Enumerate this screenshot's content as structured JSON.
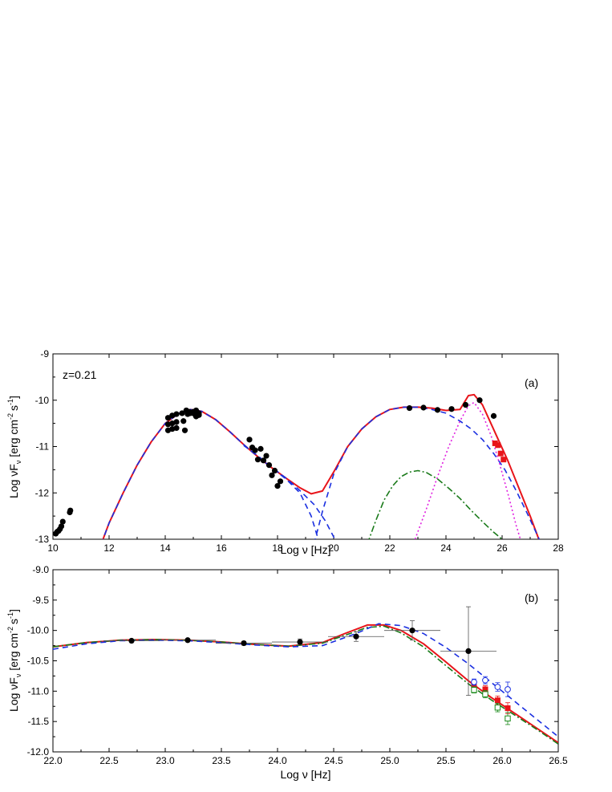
{
  "chart_data": [
    {
      "type": "scatter",
      "panel_label": "(a)",
      "annotation": "z=0.21",
      "xlabel": "Log ν [Hz]",
      "ylabel": "Log νF",
      "ylabel_sub": "ν",
      "ylabel_unit_prefix": "[erg cm",
      "ylabel_unit_exp1": "-2",
      "ylabel_unit_mid": "s",
      "ylabel_unit_exp2": "-1",
      "ylabel_unit_suffix": "]",
      "xlim": [
        10,
        28
      ],
      "ylim": [
        -13,
        -9
      ],
      "xticks": [
        "10",
        "12",
        "14",
        "16",
        "18",
        "20",
        "22",
        "24",
        "26",
        "28"
      ],
      "xtick_values": [
        10,
        12,
        14,
        16,
        18,
        20,
        22,
        24,
        26,
        28
      ],
      "yticks": [
        "-13",
        "-12",
        "-11",
        "-10",
        "-9"
      ],
      "ytick_values": [
        -13,
        -12,
        -11,
        -10,
        -9
      ],
      "series": [
        {
          "style": "black-filled-circle",
          "points": [
            [
              10.1,
              -12.88
            ],
            [
              10.15,
              -12.84
            ],
            [
              10.2,
              -12.82
            ],
            [
              10.25,
              -12.78
            ],
            [
              10.3,
              -12.72
            ],
            [
              10.35,
              -12.62
            ],
            [
              10.6,
              -12.42
            ],
            [
              10.62,
              -12.38
            ],
            [
              14.1,
              -10.38
            ],
            [
              14.1,
              -10.52
            ],
            [
              14.1,
              -10.65
            ],
            [
              14.25,
              -10.33
            ],
            [
              14.25,
              -10.5
            ],
            [
              14.25,
              -10.62
            ],
            [
              14.4,
              -10.3
            ],
            [
              14.4,
              -10.47
            ],
            [
              14.4,
              -10.6
            ],
            [
              14.6,
              -10.28
            ],
            [
              14.65,
              -10.45
            ],
            [
              14.7,
              -10.65
            ],
            [
              14.75,
              -10.22
            ],
            [
              14.8,
              -10.3
            ],
            [
              14.85,
              -10.25
            ],
            [
              14.9,
              -10.28
            ],
            [
              15.0,
              -10.25
            ],
            [
              15.05,
              -10.3
            ],
            [
              15.1,
              -10.22
            ],
            [
              15.1,
              -10.35
            ],
            [
              15.2,
              -10.28
            ],
            [
              15.2,
              -10.32
            ],
            [
              17.0,
              -10.85
            ],
            [
              17.1,
              -11.02
            ],
            [
              17.2,
              -11.08
            ],
            [
              17.3,
              -11.28
            ],
            [
              17.4,
              -11.05
            ],
            [
              17.5,
              -11.3
            ],
            [
              17.6,
              -11.2
            ],
            [
              17.7,
              -11.4
            ],
            [
              17.8,
              -11.62
            ],
            [
              17.9,
              -11.52
            ],
            [
              18.0,
              -11.85
            ],
            [
              18.1,
              -11.75
            ],
            [
              22.7,
              -10.17
            ],
            [
              23.2,
              -10.16
            ],
            [
              23.7,
              -10.21
            ],
            [
              24.2,
              -10.19
            ],
            [
              24.7,
              -10.1
            ],
            [
              25.2,
              -10.0
            ],
            [
              25.7,
              -10.34
            ]
          ]
        },
        {
          "style": "red-filled-square",
          "points": [
            [
              25.75,
              -10.93
            ],
            [
              25.85,
              -10.97
            ],
            [
              25.95,
              -11.15
            ],
            [
              26.05,
              -11.28
            ]
          ]
        }
      ],
      "curves": [
        {
          "style": "red-solid",
          "x": [
            11.6,
            12.0,
            12.5,
            13.0,
            13.5,
            14.0,
            14.5,
            14.9,
            15.3,
            15.8,
            16.3,
            16.8,
            17.3,
            17.8,
            18.3,
            18.8,
            19.2,
            19.6,
            20.0,
            20.5,
            21.0,
            21.5,
            22.0,
            22.5,
            23.0,
            23.5,
            24.0,
            24.5,
            24.8,
            25.0,
            25.3,
            25.6,
            25.9,
            26.2,
            26.6,
            27.0,
            27.4
          ],
          "y": [
            -13.3,
            -12.65,
            -12.0,
            -11.4,
            -10.9,
            -10.5,
            -10.28,
            -10.2,
            -10.24,
            -10.42,
            -10.68,
            -10.96,
            -11.22,
            -11.46,
            -11.68,
            -11.89,
            -12.02,
            -11.96,
            -11.55,
            -11.0,
            -10.62,
            -10.36,
            -10.2,
            -10.15,
            -10.15,
            -10.17,
            -10.22,
            -10.2,
            -9.9,
            -9.88,
            -10.1,
            -10.5,
            -10.9,
            -11.3,
            -11.9,
            -12.5,
            -13.15
          ]
        },
        {
          "style": "blue-dashed",
          "x": [
            11.6,
            12.0,
            12.5,
            13.0,
            13.5,
            14.0,
            14.5,
            14.9,
            15.3,
            15.8,
            16.3,
            16.8,
            17.3,
            17.8,
            18.3,
            18.8,
            19.2,
            19.5
          ],
          "y": [
            -13.3,
            -12.65,
            -12.0,
            -11.4,
            -10.9,
            -10.5,
            -10.28,
            -10.2,
            -10.24,
            -10.42,
            -10.68,
            -10.96,
            -11.22,
            -11.46,
            -11.7,
            -12.0,
            -12.5,
            -13.1
          ]
        },
        {
          "style": "blue-dashed",
          "x": [
            19.3,
            19.6,
            20.0,
            20.5,
            21.0,
            21.5,
            22.0,
            22.5,
            23.0,
            23.5,
            24.0,
            24.5,
            24.9,
            25.3,
            25.7,
            26.1,
            26.5,
            26.9,
            27.4
          ],
          "y": [
            -13.1,
            -12.4,
            -11.6,
            -11.0,
            -10.62,
            -10.36,
            -10.2,
            -10.15,
            -10.15,
            -10.2,
            -10.28,
            -10.45,
            -10.62,
            -10.85,
            -11.15,
            -11.5,
            -11.95,
            -12.45,
            -13.1
          ]
        },
        {
          "style": "blue-dashed",
          "x": [
            16.8,
            17.3,
            17.8,
            18.3,
            18.8,
            19.3,
            19.7,
            20.0,
            20.3
          ],
          "y": [
            -10.98,
            -11.2,
            -11.45,
            -11.68,
            -11.95,
            -12.25,
            -12.6,
            -12.95,
            -13.3
          ]
        },
        {
          "style": "green-dash-dot",
          "x": [
            21.2,
            21.5,
            21.8,
            22.1,
            22.4,
            22.7,
            23.0,
            23.3,
            23.7,
            24.1,
            24.5,
            24.9,
            25.3,
            25.7,
            26.0
          ],
          "y": [
            -13.1,
            -12.6,
            -12.15,
            -11.85,
            -11.65,
            -11.55,
            -11.52,
            -11.56,
            -11.7,
            -11.9,
            -12.12,
            -12.38,
            -12.62,
            -12.85,
            -13.0
          ]
        },
        {
          "style": "magenta-dotted",
          "x": [
            22.9,
            23.3,
            23.7,
            24.1,
            24.5,
            24.8,
            25.0,
            25.3,
            25.6,
            25.9,
            26.2,
            26.5,
            26.65
          ],
          "y": [
            -13.0,
            -12.35,
            -11.65,
            -11.0,
            -10.45,
            -10.12,
            -10.05,
            -10.3,
            -10.75,
            -11.35,
            -12.0,
            -12.7,
            -13.0
          ]
        }
      ],
      "legend": "none",
      "grid": false
    },
    {
      "type": "scatter",
      "panel_label": "(b)",
      "xlabel": "Log ν [Hz]",
      "ylabel": "Log νF",
      "ylabel_sub": "ν",
      "ylabel_unit_prefix": "[erg cm",
      "ylabel_unit_exp1": "-2",
      "ylabel_unit_mid": "s",
      "ylabel_unit_exp2": "-1",
      "ylabel_unit_suffix": "]",
      "xlim": [
        22.0,
        26.5
      ],
      "ylim": [
        -12.0,
        -9.0
      ],
      "xticks": [
        "22.0",
        "22.5",
        "23.0",
        "23.5",
        "24.0",
        "24.5",
        "25.0",
        "25.5",
        "26.0",
        "26.5"
      ],
      "xtick_values": [
        22.0,
        22.5,
        23.0,
        23.5,
        24.0,
        24.5,
        25.0,
        25.5,
        26.0,
        26.5
      ],
      "yticks": [
        "-12.0",
        "-11.5",
        "-11.0",
        "-10.5",
        "-10.0",
        "-9.5",
        "-9.0"
      ],
      "ytick_values": [
        -12.0,
        -11.5,
        -11.0,
        -10.5,
        -10.0,
        -9.5,
        -9.0
      ],
      "series": [
        {
          "style": "black-filled-circle",
          "points": [
            {
              "x": 22.7,
              "y": -10.17,
              "xerr": 0.25,
              "yerr": 0.02
            },
            {
              "x": 23.2,
              "y": -10.16,
              "xerr": 0.25,
              "yerr": 0.02
            },
            {
              "x": 23.7,
              "y": -10.21,
              "xerr": 0.25,
              "yerr": 0.03
            },
            {
              "x": 24.2,
              "y": -10.19,
              "xerr": 0.25,
              "yerr": 0.05
            },
            {
              "x": 24.7,
              "y": -10.1,
              "xerr": 0.25,
              "yerr": 0.08
            },
            {
              "x": 25.2,
              "y": -10.0,
              "xerr": 0.25,
              "yerr": 0.16
            },
            {
              "x": 25.7,
              "y": -10.34,
              "xerr": 0.25,
              "yerr": 0.73
            }
          ]
        },
        {
          "style": "red-filled-square",
          "points": [
            {
              "x": 25.75,
              "y": -10.93,
              "xerr": 0.0,
              "yerr": 0.05
            },
            {
              "x": 25.85,
              "y": -10.97,
              "xerr": 0.0,
              "yerr": 0.06
            },
            {
              "x": 25.96,
              "y": -11.15,
              "xerr": 0.0,
              "yerr": 0.07
            },
            {
              "x": 26.05,
              "y": -11.28,
              "xerr": 0.0,
              "yerr": 0.09
            }
          ]
        },
        {
          "style": "blue-open-circle",
          "points": [
            {
              "x": 25.75,
              "y": -10.85,
              "xerr": 0.0,
              "yerr": 0.05
            },
            {
              "x": 25.85,
              "y": -10.82,
              "xerr": 0.0,
              "yerr": 0.06
            },
            {
              "x": 25.96,
              "y": -10.93,
              "xerr": 0.0,
              "yerr": 0.07
            },
            {
              "x": 26.05,
              "y": -10.97,
              "xerr": 0.0,
              "yerr": 0.12
            }
          ]
        },
        {
          "style": "green-open-square",
          "points": [
            {
              "x": 25.75,
              "y": -10.98,
              "xerr": 0.0,
              "yerr": 0.05
            },
            {
              "x": 25.85,
              "y": -11.05,
              "xerr": 0.0,
              "yerr": 0.06
            },
            {
              "x": 25.96,
              "y": -11.27,
              "xerr": 0.0,
              "yerr": 0.07
            },
            {
              "x": 26.05,
              "y": -11.45,
              "xerr": 0.0,
              "yerr": 0.1
            }
          ]
        }
      ],
      "curves": [
        {
          "style": "red-solid",
          "x": [
            22.0,
            22.3,
            22.6,
            22.9,
            23.2,
            23.5,
            23.8,
            24.1,
            24.4,
            24.6,
            24.8,
            24.95,
            25.1,
            25.3,
            25.5,
            25.7,
            25.9,
            26.1,
            26.3,
            26.5
          ],
          "y": [
            -10.27,
            -10.2,
            -10.16,
            -10.15,
            -10.16,
            -10.19,
            -10.23,
            -10.26,
            -10.2,
            -10.05,
            -9.91,
            -9.91,
            -10.0,
            -10.22,
            -10.52,
            -10.83,
            -11.1,
            -11.35,
            -11.6,
            -11.85
          ]
        },
        {
          "style": "green-dash-dot",
          "x": [
            22.0,
            22.3,
            22.6,
            22.9,
            23.2,
            23.5,
            23.8,
            24.1,
            24.4,
            24.6,
            24.8,
            24.95,
            25.1,
            25.3,
            25.5,
            25.7,
            25.9,
            26.1,
            26.3,
            26.5
          ],
          "y": [
            -10.27,
            -10.2,
            -10.16,
            -10.15,
            -10.16,
            -10.19,
            -10.23,
            -10.26,
            -10.21,
            -10.08,
            -9.95,
            -9.93,
            -10.04,
            -10.27,
            -10.58,
            -10.88,
            -11.14,
            -11.38,
            -11.62,
            -11.87
          ]
        },
        {
          "style": "blue-dashed",
          "x": [
            22.0,
            22.3,
            22.6,
            22.9,
            23.2,
            23.5,
            23.8,
            24.1,
            24.4,
            24.7,
            24.9,
            25.1,
            25.3,
            25.5,
            25.7,
            25.9,
            26.1,
            26.3,
            26.5
          ],
          "y": [
            -10.31,
            -10.22,
            -10.17,
            -10.16,
            -10.17,
            -10.2,
            -10.24,
            -10.27,
            -10.25,
            -10.05,
            -9.89,
            -9.92,
            -10.05,
            -10.28,
            -10.55,
            -10.85,
            -11.15,
            -11.45,
            -11.75
          ]
        }
      ],
      "legend": "none",
      "grid": false
    }
  ]
}
